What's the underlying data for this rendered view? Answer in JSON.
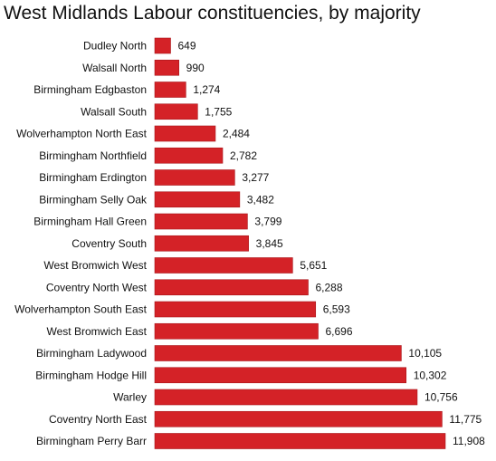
{
  "chart_data": {
    "type": "bar",
    "orientation": "horizontal",
    "title": "West Midlands Labour constituencies, by majority",
    "xlabel": "",
    "ylabel": "",
    "xlim": [
      0,
      11908
    ],
    "grid": false,
    "bar_color": "#d42227",
    "bar_edge_color": "#a8161b",
    "categories": [
      "Dudley North",
      "Walsall North",
      "Birmingham Edgbaston",
      "Walsall South",
      "Wolverhampton North East",
      "Birmingham Northfield",
      "Birmingham Erdington",
      "Birmingham Selly Oak",
      "Birmingham Hall Green",
      "Coventry South",
      "West Bromwich West",
      "Coventry North West",
      "Wolverhampton South East",
      "West Bromwich East",
      "Birmingham Ladywood",
      "Birmingham Hodge Hill",
      "Warley",
      "Coventry North East",
      "Birmingham Perry Barr"
    ],
    "values": [
      649,
      990,
      1274,
      1755,
      2484,
      2782,
      3277,
      3482,
      3799,
      3845,
      5651,
      6288,
      6593,
      6696,
      10105,
      10302,
      10756,
      11775,
      11908
    ],
    "value_labels": [
      "649",
      "990",
      "1,274",
      "1,755",
      "2,484",
      "2,782",
      "3,277",
      "3,482",
      "3,799",
      "3,845",
      "5,651",
      "6,288",
      "6,593",
      "6,696",
      "10,105",
      "10,302",
      "10,756",
      "11,775",
      "11,908"
    ]
  }
}
